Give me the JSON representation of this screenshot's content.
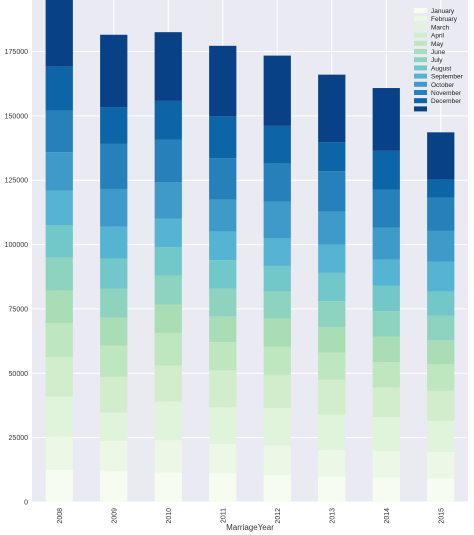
{
  "chart_data": {
    "type": "bar",
    "stacked": true,
    "xlabel": "MarriageYear",
    "ylabel": "",
    "ylim": [
      0,
      195000
    ],
    "yticks": [
      0,
      25000,
      50000,
      75000,
      100000,
      125000,
      150000,
      175000
    ],
    "grid": true,
    "legend_position": "top-right",
    "categories": [
      "2008",
      "2009",
      "2010",
      "2011",
      "2012",
      "2013",
      "2014",
      "2015"
    ],
    "series": [
      {
        "name": "January",
        "color": "#f7fcf0",
        "values": [
          12500,
          12000,
          11500,
          11200,
          10500,
          9800,
          9500,
          9200
        ]
      },
      {
        "name": "February",
        "color": "#ecf8e6",
        "values": [
          13000,
          11800,
          12500,
          11300,
          11500,
          10500,
          10300,
          10300
        ]
      },
      {
        "name": "March",
        "color": "#e0f3db",
        "values": [
          15500,
          11000,
          15000,
          14300,
          14500,
          13700,
          13200,
          12000
        ]
      },
      {
        "name": "April",
        "color": "#d1edcb",
        "values": [
          15300,
          13800,
          14000,
          14300,
          13000,
          13500,
          11500,
          11700
        ]
      },
      {
        "name": "May",
        "color": "#bee6bf",
        "values": [
          13200,
          12200,
          12700,
          11000,
          10800,
          10500,
          9800,
          10300
        ]
      },
      {
        "name": "June",
        "color": "#a8ddb5",
        "values": [
          12700,
          10800,
          11000,
          10000,
          11000,
          10000,
          10000,
          9300
        ]
      },
      {
        "name": "July",
        "color": "#8dd3bf",
        "values": [
          12700,
          11200,
          11300,
          10800,
          10400,
          10000,
          9800,
          9500
        ]
      },
      {
        "name": "August",
        "color": "#72c8c8",
        "values": [
          12700,
          11800,
          11000,
          11000,
          10000,
          11000,
          10000,
          9500
        ]
      },
      {
        "name": "September",
        "color": "#56b4d3",
        "values": [
          13300,
          12300,
          11000,
          11200,
          10700,
          11000,
          10000,
          11500
        ]
      },
      {
        "name": "October",
        "color": "#3e9ac8",
        "values": [
          15000,
          14700,
          14300,
          12300,
          14300,
          12800,
          12500,
          12000
        ]
      },
      {
        "name": "November",
        "color": "#2680ba",
        "values": [
          16200,
          17500,
          16500,
          16200,
          14700,
          15700,
          14800,
          13000
        ]
      },
      {
        "name": "December",
        "color": "#0b65a7",
        "values": [
          17000,
          14200,
          15000,
          16200,
          14700,
          11300,
          15000,
          7000
        ]
      },
      {
        "name": "",
        "color": "#084185",
        "values": [
          30000,
          28200,
          26700,
          27400,
          27300,
          26200,
          24400,
          18300
        ]
      }
    ]
  }
}
